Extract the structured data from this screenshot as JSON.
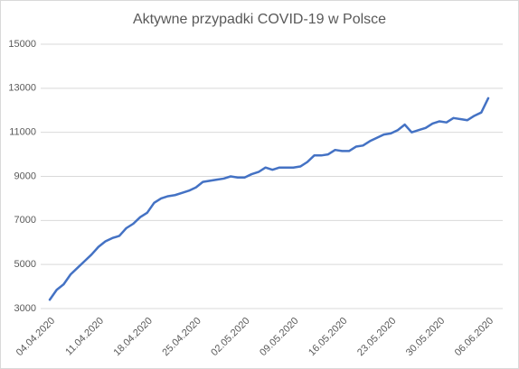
{
  "chart_data": {
    "type": "line",
    "title": "Aktywne przypadki COVID-19 w Polsce",
    "categories": [
      "04.04.2020",
      null,
      null,
      null,
      null,
      null,
      null,
      "11.04.2020",
      null,
      null,
      null,
      null,
      null,
      null,
      "18.04.2020",
      null,
      null,
      null,
      null,
      null,
      null,
      "25.04.2020",
      null,
      null,
      null,
      null,
      null,
      null,
      "02.05.2020",
      null,
      null,
      null,
      null,
      null,
      null,
      "09.05.2020",
      null,
      null,
      null,
      null,
      null,
      null,
      "16.05.2020",
      null,
      null,
      null,
      null,
      null,
      null,
      "23.05.2020",
      null,
      null,
      null,
      null,
      null,
      null,
      "30.05.2020",
      null,
      null,
      null,
      null,
      null,
      null,
      "06.06.2020"
    ],
    "series": [
      {
        "name": "Aktywne przypadki",
        "color": "#4472c4",
        "values": [
          3400,
          3850,
          4100,
          4550,
          4850,
          5150,
          5450,
          5800,
          6050,
          6200,
          6300,
          6650,
          6850,
          7150,
          7350,
          7800,
          8000,
          8100,
          8150,
          8250,
          8350,
          8500,
          8750,
          8800,
          8850,
          8900,
          9000,
          8950,
          8950,
          9100,
          9200,
          9400,
          9300,
          9400,
          9400,
          9400,
          9450,
          9650,
          9950,
          9950,
          10000,
          10200,
          10150,
          10150,
          10350,
          10400,
          10600,
          10750,
          10900,
          10950,
          11100,
          11350,
          11000,
          11100,
          11200,
          11400,
          11500,
          11450,
          11650,
          11600,
          11550,
          11750,
          11900,
          12550
        ]
      }
    ],
    "ylim": [
      3000,
      15000
    ],
    "yticks": [
      3000,
      5000,
      7000,
      9000,
      11000,
      13000,
      15000
    ],
    "grid": true
  }
}
